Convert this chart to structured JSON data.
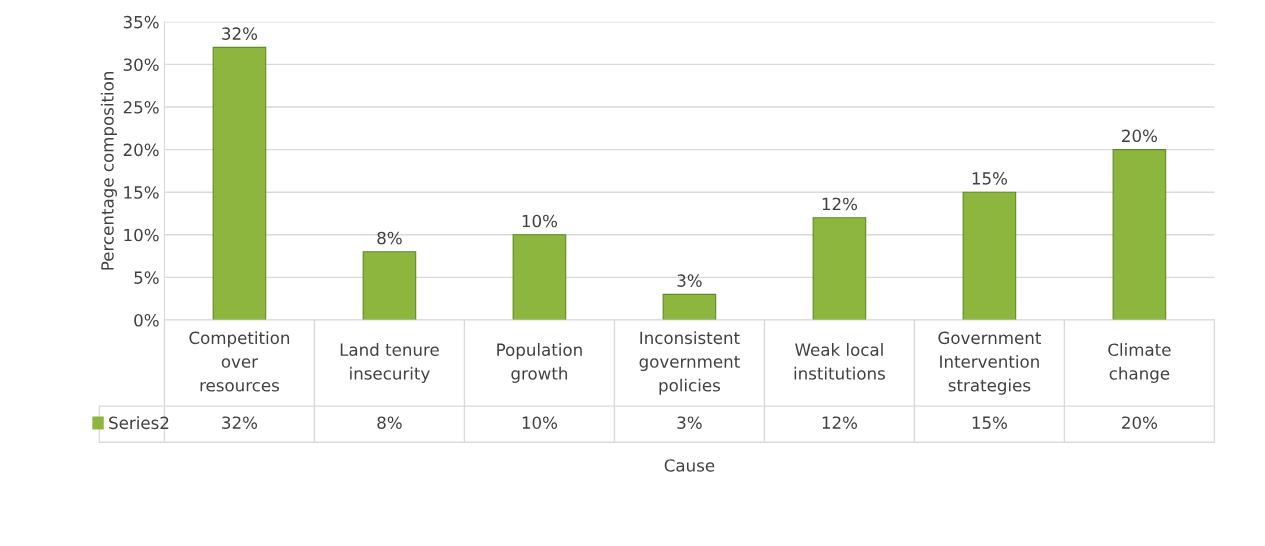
{
  "chart_data": {
    "type": "bar",
    "xlabel": "Cause",
    "ylabel": "Percentage composition",
    "categories": [
      "Competition\nover\nresources",
      "Land tenure\ninsecurity",
      "Population\ngrowth",
      "Inconsistent\ngovernment\npolicies",
      "Weak local\ninstitutions",
      "Government\nIntervention\nstrategies",
      "Climate\nchange"
    ],
    "series": [
      {
        "name": "Series2",
        "color": "#8db63e",
        "values": [
          32,
          8,
          10,
          3,
          12,
          15,
          20
        ]
      }
    ],
    "value_labels": [
      "32%",
      "8%",
      "10%",
      "3%",
      "12%",
      "15%",
      "20%"
    ],
    "ylim": [
      0,
      35
    ],
    "yticks": [
      {
        "value": 0,
        "label": "0%"
      },
      {
        "value": 5,
        "label": "5%"
      },
      {
        "value": 10,
        "label": "10%"
      },
      {
        "value": 15,
        "label": "15%"
      },
      {
        "value": 20,
        "label": "20%"
      },
      {
        "value": 25,
        "label": "25%"
      },
      {
        "value": 30,
        "label": "30%"
      },
      {
        "value": 35,
        "label": "35%"
      }
    ],
    "grid": "y",
    "legend": "bottom left"
  }
}
